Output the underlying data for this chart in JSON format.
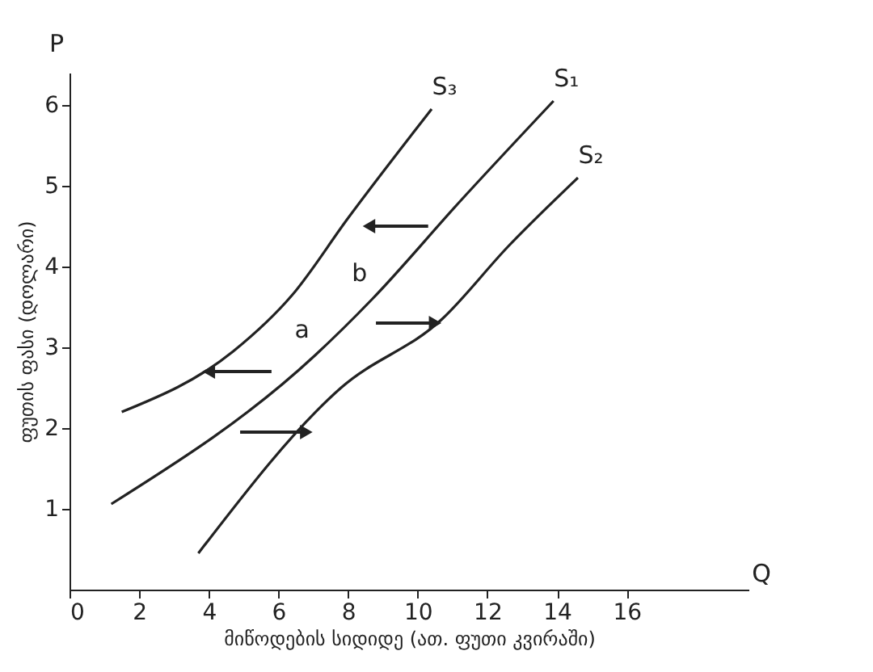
{
  "chart_data": {
    "type": "line",
    "xlabel": "მიწოდების სიდიდე (ათ. ფუთი კვირაში)",
    "ylabel": "ფუთის ფასი (დოლარი)",
    "xlim": [
      0,
      19.5
    ],
    "ylim": [
      0,
      6.4
    ],
    "xticks": [
      0,
      2,
      4,
      6,
      8,
      10,
      12,
      14,
      16
    ],
    "yticks": [
      1,
      2,
      3,
      4,
      5,
      6
    ],
    "grid": false,
    "marker": "none",
    "line_style": "solid",
    "series": [
      {
        "name": "S₃",
        "color": "#222222",
        "x": [
          1.5,
          4.7,
          6.4,
          8.0,
          10.4
        ],
        "values": [
          2.2,
          2.95,
          3.65,
          4.6,
          5.95
        ]
      },
      {
        "name": "S₁",
        "color": "#222222",
        "x": [
          1.2,
          7.05,
          8.7,
          11.2,
          13.9
        ],
        "values": [
          1.06,
          2.9,
          3.6,
          4.8,
          6.05
        ]
      },
      {
        "name": "S₂",
        "color": "#222222",
        "x": [
          3.7,
          7.8,
          10.7,
          12.6,
          14.6
        ],
        "values": [
          0.45,
          2.5,
          3.35,
          4.25,
          5.1
        ]
      }
    ],
    "annotations": [
      {
        "text": "a",
        "x": 7.05,
        "y": 2.9
      },
      {
        "text": "b",
        "x": 8.7,
        "y": 3.6
      },
      "P",
      "Q"
    ]
  }
}
